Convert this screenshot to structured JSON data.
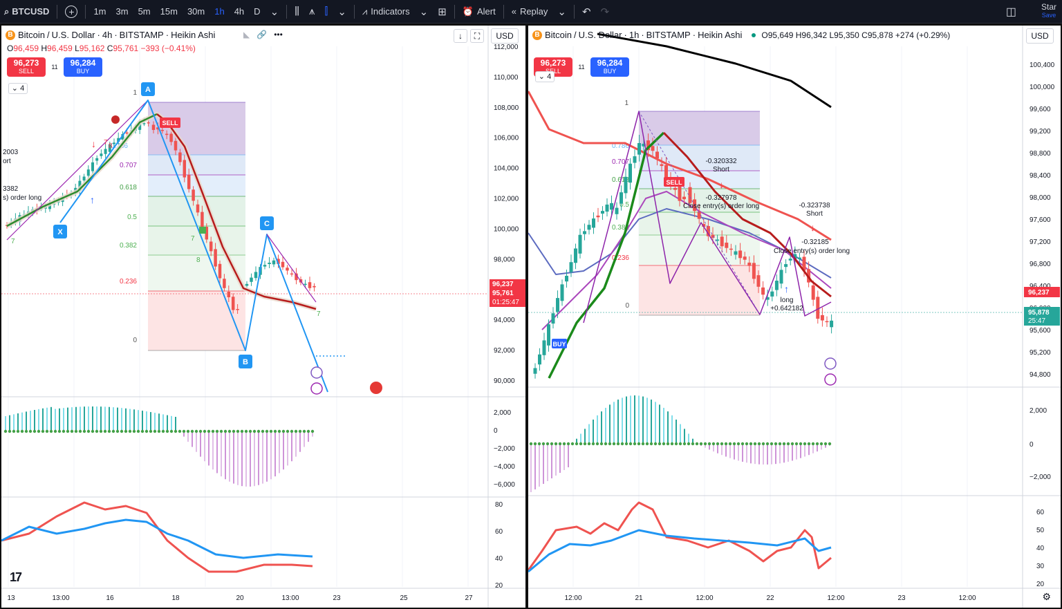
{
  "toolbar": {
    "symbol": "BTCUSD",
    "add_symbol": "+",
    "intervals": [
      "1m",
      "3m",
      "5m",
      "15m",
      "30m",
      "1h",
      "4h",
      "D"
    ],
    "active_interval": "1h",
    "indicators_label": "Indicators",
    "alert_label": "Alert",
    "replay_label": "Replay",
    "star_label": "Star",
    "save_label": "Save"
  },
  "left": {
    "coin": "B",
    "title_parts": [
      "Bitcoin",
      "U.S. Dollar",
      "4h",
      "BITSTAMP",
      "Heikin Ashi"
    ],
    "ohlc": {
      "o": "96,459",
      "h": "96,459",
      "l": "95,162",
      "c": "95,761",
      "chg": "−393 (−0.41%)"
    },
    "sell": {
      "price": "96,273",
      "label": "SELL"
    },
    "buy": {
      "price": "96,284",
      "label": "BUY"
    },
    "spread": "11",
    "collapse": "4",
    "currency": "USD",
    "price_ticks": [
      "112,000",
      "110,000",
      "108,000",
      "106,000",
      "104,000",
      "102,000",
      "100,000",
      "98,000",
      "96,000",
      "94,000",
      "92,000",
      "90,000"
    ],
    "last_price_tag": "96,237",
    "close_tag": "95,761",
    "timer_tag": "01:25:47",
    "macd_ticks": [
      "2,000",
      "0",
      "−2,000",
      "−4,000",
      "−6,000"
    ],
    "rsi_ticks": [
      "80",
      "60",
      "40",
      "20"
    ],
    "time_ticks": [
      "13",
      "13:00",
      "16",
      "18",
      "20",
      "13:00",
      "23",
      "25",
      "27"
    ],
    "fib_levels": [
      "1",
      "0.786",
      "0.707",
      "0.618",
      "0.5",
      "0.382",
      "0.236",
      "0"
    ],
    "pattern_points": [
      "X",
      "A",
      "B",
      "C"
    ],
    "annotations": [
      "2003",
      "ort",
      "3382",
      "s) order long",
      "SELL"
    ],
    "counts": [
      "7",
      "8",
      "7",
      "8",
      "7",
      "7"
    ]
  },
  "right": {
    "coin": "B",
    "title_parts": [
      "Bitcoin",
      "U.S. Dollar",
      "1h",
      "BITSTAMP",
      "Heikin Ashi"
    ],
    "ohlc": {
      "o": "95,649",
      "h": "96,342",
      "l": "95,350",
      "c": "95,878",
      "chg": "+274 (+0.29%)"
    },
    "sell": {
      "price": "96,273",
      "label": "SELL"
    },
    "buy": {
      "price": "96,284",
      "label": "BUY"
    },
    "spread": "11",
    "collapse": "4",
    "currency": "USD",
    "price_ticks": [
      "100,400",
      "100,000",
      "99,600",
      "99,200",
      "98,800",
      "98,400",
      "98,000",
      "97,600",
      "97,200",
      "96,800",
      "96,400",
      "96,000",
      "95,600",
      "95,200",
      "94,800"
    ],
    "last_price_tag": "96,237",
    "close_tag": "95,878",
    "timer_tag": "25:47",
    "macd_ticks": [
      "2,000",
      "0",
      "−2,000"
    ],
    "rsi_ticks": [
      "60",
      "50",
      "40",
      "30",
      "20"
    ],
    "time_ticks": [
      "12:00",
      "21",
      "12:00",
      "22",
      "12:00",
      "23",
      "12:00"
    ],
    "fib_levels": [
      "1",
      "0.786",
      "0.707",
      "0.618",
      "0.5",
      "0.382",
      "0.236",
      "0"
    ],
    "annotations": {
      "a1": "-0.320332",
      "a1b": "Short",
      "a2": "-0.327978",
      "a2b": "Close entry(s) order long",
      "a3": "-0.323738",
      "a3b": "Short",
      "a4": "-0.32185",
      "a4b": "Close entry(s) order long",
      "a5": "long",
      "a5b": "+0.642182",
      "sell_tag": "SELL",
      "buy_tag": "BUY"
    }
  },
  "colors": {
    "up": "#26a69a",
    "down": "#ef5350",
    "ma_red": "#f05350",
    "ma_green": "#1b8a1b",
    "blue": "#2962ff",
    "fib_purple": "#d1c4e9",
    "fib_blue": "#bbdefb",
    "fib_green": "#c8e6c9",
    "fib_red": "#fcdede"
  }
}
